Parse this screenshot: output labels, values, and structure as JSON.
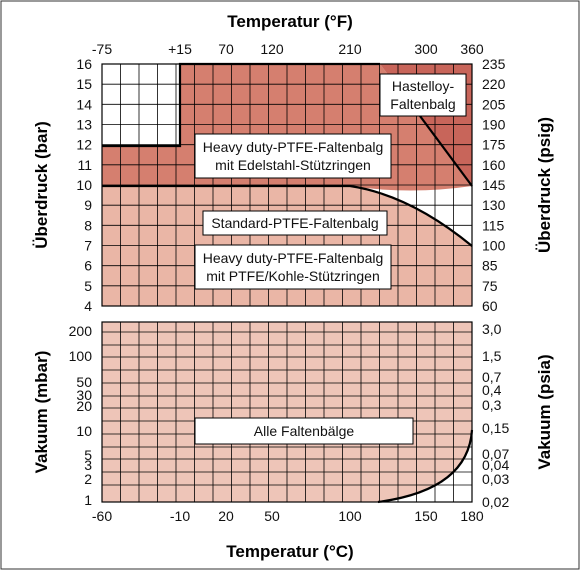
{
  "chart_data": {
    "type": "area",
    "x_axis_bottom": {
      "title": "Temperatur (°C)",
      "ticks": [
        "-60",
        "-10",
        "20",
        "50",
        "100",
        "150",
        "180"
      ]
    },
    "x_axis_top": {
      "title": "Temperatur (°F)",
      "ticks": [
        "-75",
        "+15",
        "70",
        "120",
        "210",
        "300",
        "360"
      ]
    },
    "pressure_panel": {
      "y_left_title": "Überdruck (bar)",
      "y_left_ticks": [
        "16",
        "15",
        "14",
        "13",
        "12",
        "11",
        "10",
        "9",
        "8",
        "7",
        "6",
        "5",
        "4"
      ],
      "y_right_title": "Überdruck (psig)",
      "y_right_ticks": [
        "235",
        "220",
        "205",
        "190",
        "175",
        "160",
        "145",
        "130",
        "115",
        "100",
        "85",
        "75",
        "60"
      ],
      "ylim": [
        4,
        16
      ]
    },
    "vacuum_panel": {
      "y_left_title": "Vakuum (mbar)",
      "y_left_ticks": [
        "200",
        "100",
        "50",
        "30",
        "20",
        "10",
        "5",
        "3",
        "2",
        "1"
      ],
      "y_right_title": "Vakuum (psia)",
      "y_right_ticks": [
        "3,0",
        "1,5",
        "0,7",
        "0,4",
        "0,3",
        "0,15",
        "0,07",
        "0,04",
        "0,03",
        "0,02"
      ]
    },
    "zones": [
      {
        "label": "Hastelloy-Faltenbalg",
        "lines": [
          "Hastelloy-",
          "Faltenbalg"
        ],
        "color": "#c8655a",
        "boundary_points": [
          [
            120,
            16
          ],
          [
            180,
            10
          ]
        ]
      },
      {
        "label": "Heavy duty-PTFE-Faltenbalg mit Edelstahl-Stützringen",
        "lines": [
          "Heavy duty-PTFE-Faltenbalg",
          "mit Edelstahl-Stützringen"
        ],
        "color": "#d57f6f",
        "boundary_points": [
          [
            -60,
            12
          ],
          [
            -10,
            12
          ],
          [
            -10,
            16
          ],
          [
            120,
            16
          ]
        ]
      },
      {
        "label": "Standard-PTFE-Faltenbalg",
        "lines": [
          "Standard-PTFE-Faltenbalg"
        ],
        "color": "#eab6a6",
        "boundary_points": [
          [
            -60,
            10
          ],
          [
            100,
            10
          ],
          [
            180,
            7
          ]
        ]
      },
      {
        "label": "Heavy duty-PTFE-Faltenbalg mit PTFE/Kohle-Stützringen",
        "lines": [
          "Heavy duty-PTFE-Faltenbalg",
          "mit PTFE/Kohle-Stützringen"
        ],
        "color": "#eab6a6"
      },
      {
        "label": "Alle Faltenbälge",
        "lines": [
          "Alle Faltenbälge"
        ],
        "color": "#eec5b8",
        "boundary_points": [
          [
            120,
            1
          ],
          [
            180,
            200
          ]
        ]
      }
    ],
    "grid": true
  }
}
